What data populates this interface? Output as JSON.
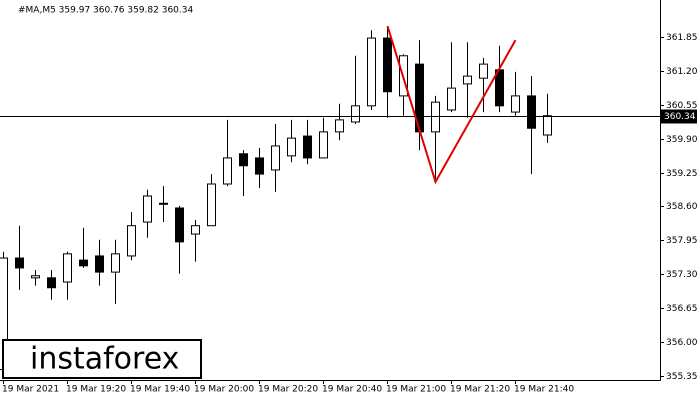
{
  "chart_data": {
    "type": "candlestick",
    "title": "#MA,M5  359.97 360.76 359.82 360.34",
    "categories": [
      "19 Mar 2021",
      null,
      null,
      null,
      "19 Mar 19:20",
      null,
      null,
      null,
      "19 Mar 19:40",
      null,
      null,
      null,
      "19 Mar 20:00",
      null,
      null,
      null,
      "19 Mar 20:20",
      null,
      null,
      null,
      "19 Mar 20:40",
      null,
      null,
      null,
      "19 Mar 21:00",
      null,
      null,
      null,
      "19 Mar 21:20",
      null,
      null,
      null,
      "19 Mar 21:40",
      null,
      null
    ],
    "open": [
      355.47,
      357.61,
      357.23,
      357.23,
      357.15,
      357.57,
      357.65,
      357.34,
      357.65,
      358.3,
      358.65,
      358.57,
      358.07,
      358.23,
      359.03,
      359.61,
      359.53,
      359.3,
      359.57,
      359.95,
      359.53,
      360.03,
      360.22,
      360.53,
      361.83,
      360.72,
      361.33,
      360.03,
      360.45,
      360.95,
      361.06,
      361.22,
      360.41,
      360.72,
      359.97
    ],
    "high": [
      357.73,
      358.23,
      357.38,
      357.38,
      357.73,
      358.19,
      357.96,
      357.96,
      358.49,
      358.92,
      358.99,
      358.61,
      358.34,
      359.22,
      360.26,
      359.68,
      359.72,
      360.18,
      360.26,
      360.26,
      360.3,
      360.57,
      361.49,
      361.98,
      362.06,
      361.52,
      361.79,
      360.72,
      361.75,
      361.75,
      361.45,
      361.68,
      361.18,
      361.1,
      360.76
    ],
    "low": [
      355.3,
      357.0,
      357.08,
      356.81,
      356.81,
      357.42,
      357.08,
      356.73,
      357.57,
      358.0,
      358.3,
      357.31,
      357.54,
      358.23,
      358.99,
      358.8,
      358.95,
      358.88,
      359.45,
      359.41,
      359.53,
      359.87,
      360.18,
      360.45,
      360.3,
      360.34,
      359.68,
      359.07,
      360.41,
      360.3,
      360.41,
      360.41,
      360.34,
      359.22,
      359.82
    ],
    "close": [
      357.61,
      357.42,
      357.27,
      357.04,
      357.69,
      357.46,
      357.34,
      357.69,
      358.23,
      358.8,
      358.66,
      357.92,
      358.23,
      359.03,
      359.53,
      359.38,
      359.22,
      359.76,
      359.91,
      359.53,
      360.03,
      360.26,
      360.53,
      361.83,
      360.8,
      361.49,
      360.03,
      360.6,
      360.87,
      361.1,
      361.33,
      360.53,
      360.72,
      360.1,
      360.34
    ],
    "ylim": [
      355.27,
      362.56
    ],
    "yticks": [
      361.85,
      {
        "value": 361.2,
        "label": "361.20"
      },
      360.55,
      {
        "value": 359.9,
        "label": "359.90"
      },
      359.25,
      {
        "value": 358.6,
        "label": "358.60"
      },
      357.95,
      {
        "value": 357.3,
        "label": "357.30"
      },
      356.65,
      {
        "value": 356,
        "label": "356.00"
      },
      355.35
    ],
    "last_price": 360.34,
    "pattern": {
      "color": "#e00000",
      "points": [
        [
          24,
          362.06
        ],
        [
          27,
          359.07
        ],
        [
          32,
          361.79
        ]
      ]
    },
    "watermark": "instaforex"
  }
}
